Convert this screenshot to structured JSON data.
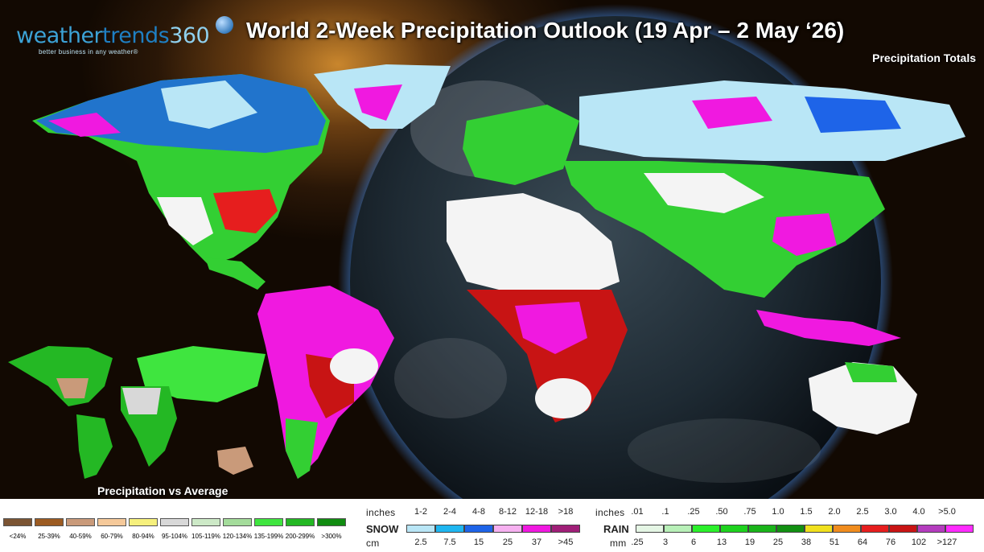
{
  "logo": {
    "brand_a": "weather",
    "brand_b": "trends",
    "brand_c": "360",
    "tagline": "better business in any weather®"
  },
  "title": "World 2-Week Precipitation Outlook (19 Apr – 2 May ‘26)",
  "subtitle": "Precipitation Totals",
  "inset_label": "Precipitation vs Average",
  "pva_legend": [
    {
      "label": "<24%",
      "color": "#7b5433"
    },
    {
      "label": "25-39%",
      "color": "#9c5b22"
    },
    {
      "label": "40-59%",
      "color": "#c99a7a"
    },
    {
      "label": "60-79%",
      "color": "#f5c99a"
    },
    {
      "label": "80-94%",
      "color": "#f6f07d"
    },
    {
      "label": "95-104%",
      "color": "#d8d8d8"
    },
    {
      "label": "105-119%",
      "color": "#cde9c7"
    },
    {
      "label": "120-134%",
      "color": "#a4dc9b"
    },
    {
      "label": "135-199%",
      "color": "#3fe53f"
    },
    {
      "label": "200-299%",
      "color": "#24b824"
    },
    {
      "label": ">300%",
      "color": "#118c11"
    }
  ],
  "snow": {
    "row_label": "SNOW",
    "inches_label": "inches",
    "cm_label": "cm",
    "inches": [
      "1-2",
      "2-4",
      "4-8",
      "8-12",
      "12-18",
      ">18"
    ],
    "cm": [
      "2.5",
      "7.5",
      "15",
      "25",
      "37",
      ">45"
    ],
    "colors": [
      "#b9e6f6",
      "#1fb6f0",
      "#1e64e8",
      "#f6b0f0",
      "#f019e0",
      "#a01f78"
    ]
  },
  "rain": {
    "row_label": "RAIN",
    "inches_label": "inches",
    "mm_label": "mm",
    "inches": [
      ".01",
      ".1",
      ".25",
      ".50",
      ".75",
      "1.0",
      "1.5",
      "2.0",
      "2.5",
      "3.0",
      "4.0",
      ">5.0"
    ],
    "mm": [
      ".25",
      "3",
      "6",
      "13",
      "19",
      "25",
      "38",
      "51",
      "64",
      "76",
      "102",
      ">127"
    ],
    "colors": [
      "#e5f6e5",
      "#b8f0b8",
      "#2bf02b",
      "#1ed21e",
      "#1ab41a",
      "#129012",
      "#f0e01e",
      "#f08c1e",
      "#e61e1e",
      "#c81414",
      "#b43cbe",
      "#ff2bff"
    ]
  }
}
